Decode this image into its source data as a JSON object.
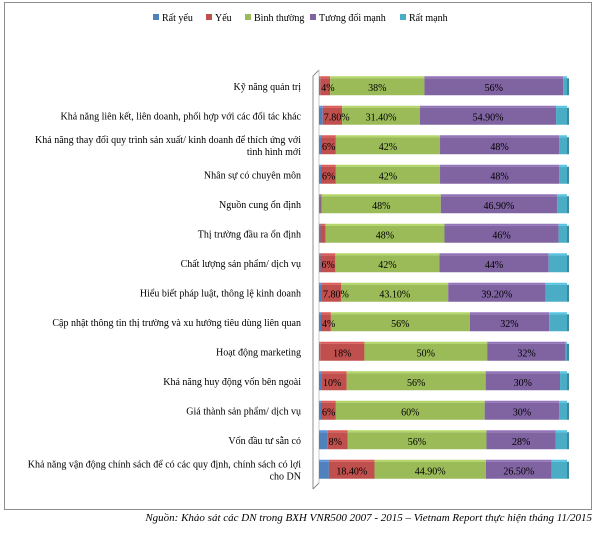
{
  "chart_data": {
    "type": "bar",
    "orientation": "horizontal",
    "stacked": true,
    "percent": true,
    "legend_position": "top",
    "series": [
      {
        "name": "Rất yếu",
        "color": "#4f81bd",
        "values": [
          0.5,
          1.5,
          0.8,
          0.8,
          0.6,
          0.6,
          0.6,
          1.2,
          0.8,
          0.5,
          1.2,
          0.8,
          3.5,
          4.0
        ]
      },
      {
        "name": "Yếu",
        "color": "#c0504d",
        "values": [
          4,
          7.8,
          6,
          6,
          0.5,
          2,
          6,
          7.8,
          4,
          18,
          10,
          6,
          8,
          18.4
        ]
      },
      {
        "name": "Bình thường",
        "color": "#9bbb59",
        "values": [
          38,
          31.4,
          42,
          42,
          48,
          48,
          42,
          43.1,
          56,
          50,
          56,
          60,
          56,
          44.9
        ]
      },
      {
        "name": "Tương đối mạnh",
        "color": "#8064a2",
        "values": [
          56,
          54.9,
          48,
          48,
          46.9,
          46,
          44,
          39.2,
          32,
          32,
          30,
          30,
          28,
          26.5
        ]
      },
      {
        "name": "Rất mạnh",
        "color": "#4bacc6",
        "values": [
          1.5,
          4.4,
          3.2,
          3.2,
          4.0,
          3.4,
          7.4,
          8.7,
          7.2,
          0.5,
          2.8,
          3.2,
          4.5,
          6.2
        ]
      }
    ],
    "data_labels": [
      [
        "4%",
        "38%",
        "56%"
      ],
      [
        "7.80%",
        "31.40%",
        "54.90%"
      ],
      [
        "6%",
        "42%",
        "48%"
      ],
      [
        "6%",
        "42%",
        "48%"
      ],
      [
        "",
        "48%",
        "46.90%"
      ],
      [
        "",
        "48%",
        "46%"
      ],
      [
        "6%",
        "42%",
        "44%"
      ],
      [
        "7.80%",
        "43.10%",
        "39.20%"
      ],
      [
        "4%",
        "56%",
        "32%"
      ],
      [
        "18%",
        "50%",
        "32%"
      ],
      [
        "10%",
        "56%",
        "30%"
      ],
      [
        "6%",
        "60%",
        "30%"
      ],
      [
        "8%",
        "56%",
        "28%"
      ],
      [
        "18.40%",
        "44.90%",
        "26.50%"
      ]
    ],
    "categories": [
      [
        "Kỹ năng quản trị"
      ],
      [
        "Khả năng liên kết, liên doanh, phối hợp với các đối tác khác"
      ],
      [
        "Khả năng thay đổi quy trình sản xuất/ kinh doanh để thích ứng với",
        "tình hình mới"
      ],
      [
        "Nhân sự có chuyên môn"
      ],
      [
        "Nguồn cung ổn định"
      ],
      [
        "Thị trường đầu ra ổn định"
      ],
      [
        "Chất lượng sản phẩm/ dịch vụ"
      ],
      [
        "Hiểu biết pháp luật, thông lệ kinh doanh"
      ],
      [
        "Cập nhật thông tin thị trường và xu hướng tiêu dùng liên quan"
      ],
      [
        "Hoạt động marketing"
      ],
      [
        "Khả năng huy động vốn bên ngoài"
      ],
      [
        "Giá thành sản phẩm/ dịch vụ"
      ],
      [
        "Vốn đầu tư sẵn có"
      ],
      [
        "Khả năng vận động chính sách để có các quy định, chính sách có lợi",
        "cho DN"
      ]
    ],
    "grid": false
  },
  "source": "Nguồn: Khảo sát các DN trong BXH VNR500 2007 - 2015 – Vietnam Report thực hiện tháng 11/2015"
}
